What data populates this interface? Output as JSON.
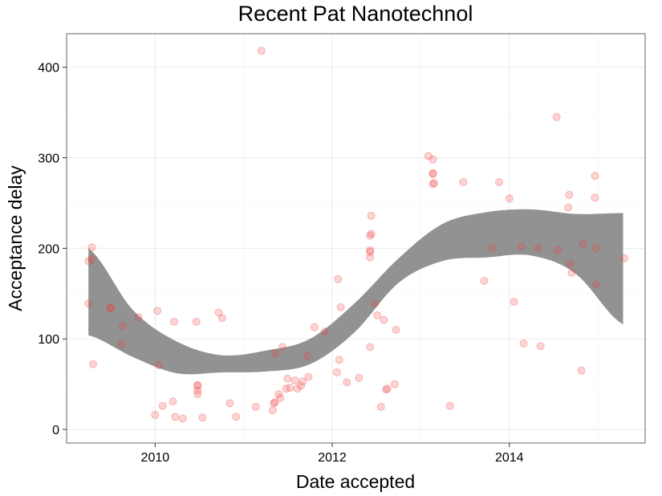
{
  "chart_data": {
    "type": "scatter",
    "title": "Recent Pat Nanotechnol",
    "xlabel": "Date accepted",
    "ylabel": "Acceptance delay",
    "x_format": "date",
    "xlim": [
      "2009-01-01",
      "2015-07-15"
    ],
    "ylim": [
      -15,
      437
    ],
    "x_ticks": [
      {
        "date": "2010-01-01",
        "label": "2010"
      },
      {
        "date": "2012-01-01",
        "label": "2012"
      },
      {
        "date": "2014-01-01",
        "label": "2014"
      }
    ],
    "y_ticks": [
      0,
      100,
      200,
      300,
      400
    ],
    "grid": true,
    "point_color": "#f03b3b",
    "ribbon_color": "#8c8c8c",
    "series": [
      {
        "values": [
          {
            "x": "2009-04-01",
            "y": 139
          },
          {
            "x": "2009-04-01",
            "y": 186
          },
          {
            "x": "2009-04-15",
            "y": 188
          },
          {
            "x": "2009-04-15",
            "y": 201
          },
          {
            "x": "2009-04-20",
            "y": 72
          },
          {
            "x": "2009-07-01",
            "y": 134
          },
          {
            "x": "2009-07-01",
            "y": 134
          },
          {
            "x": "2009-08-15",
            "y": 94
          },
          {
            "x": "2009-08-20",
            "y": 114
          },
          {
            "x": "2009-10-25",
            "y": 124
          },
          {
            "x": "2010-01-01",
            "y": 16
          },
          {
            "x": "2010-01-10",
            "y": 131
          },
          {
            "x": "2010-01-15",
            "y": 71
          },
          {
            "x": "2010-02-01",
            "y": 26
          },
          {
            "x": "2010-03-15",
            "y": 31
          },
          {
            "x": "2010-03-20",
            "y": 119
          },
          {
            "x": "2010-03-25",
            "y": 14
          },
          {
            "x": "2010-04-25",
            "y": 12
          },
          {
            "x": "2010-06-20",
            "y": 119
          },
          {
            "x": "2010-06-25",
            "y": 49
          },
          {
            "x": "2010-06-25",
            "y": 48
          },
          {
            "x": "2010-06-25",
            "y": 43
          },
          {
            "x": "2010-06-25",
            "y": 39
          },
          {
            "x": "2010-07-15",
            "y": 13
          },
          {
            "x": "2010-09-20",
            "y": 129
          },
          {
            "x": "2010-10-05",
            "y": 123
          },
          {
            "x": "2010-11-05",
            "y": 29
          },
          {
            "x": "2010-12-01",
            "y": 14
          },
          {
            "x": "2011-02-20",
            "y": 25
          },
          {
            "x": "2011-03-15",
            "y": 418
          },
          {
            "x": "2011-05-01",
            "y": 21
          },
          {
            "x": "2011-05-05",
            "y": 29
          },
          {
            "x": "2011-05-10",
            "y": 30
          },
          {
            "x": "2011-05-10",
            "y": 84
          },
          {
            "x": "2011-05-25",
            "y": 39
          },
          {
            "x": "2011-06-01",
            "y": 35
          },
          {
            "x": "2011-06-10",
            "y": 91
          },
          {
            "x": "2011-06-25",
            "y": 45
          },
          {
            "x": "2011-07-01",
            "y": 56
          },
          {
            "x": "2011-07-10",
            "y": 46
          },
          {
            "x": "2011-08-01",
            "y": 54
          },
          {
            "x": "2011-08-10",
            "y": 45
          },
          {
            "x": "2011-08-25",
            "y": 48
          },
          {
            "x": "2011-09-01",
            "y": 53
          },
          {
            "x": "2011-09-20",
            "y": 81
          },
          {
            "x": "2011-09-25",
            "y": 58
          },
          {
            "x": "2011-10-20",
            "y": 113
          },
          {
            "x": "2011-12-01",
            "y": 108
          },
          {
            "x": "2012-01-20",
            "y": 63
          },
          {
            "x": "2012-01-25",
            "y": 166
          },
          {
            "x": "2012-01-30",
            "y": 77
          },
          {
            "x": "2012-02-05",
            "y": 135
          },
          {
            "x": "2012-03-01",
            "y": 52
          },
          {
            "x": "2012-04-20",
            "y": 57
          },
          {
            "x": "2012-06-05",
            "y": 91
          },
          {
            "x": "2012-06-05",
            "y": 190
          },
          {
            "x": "2012-06-05",
            "y": 196
          },
          {
            "x": "2012-06-05",
            "y": 198
          },
          {
            "x": "2012-06-05",
            "y": 214
          },
          {
            "x": "2012-06-10",
            "y": 216
          },
          {
            "x": "2012-06-10",
            "y": 236
          },
          {
            "x": "2012-06-25",
            "y": 139
          },
          {
            "x": "2012-07-05",
            "y": 126
          },
          {
            "x": "2012-07-20",
            "y": 25
          },
          {
            "x": "2012-08-01",
            "y": 121
          },
          {
            "x": "2012-08-10",
            "y": 44
          },
          {
            "x": "2012-08-15",
            "y": 45
          },
          {
            "x": "2012-09-15",
            "y": 50
          },
          {
            "x": "2012-09-20",
            "y": 110
          },
          {
            "x": "2013-02-01",
            "y": 302
          },
          {
            "x": "2013-02-20",
            "y": 298
          },
          {
            "x": "2013-02-20",
            "y": 282
          },
          {
            "x": "2013-02-20",
            "y": 283
          },
          {
            "x": "2013-02-20",
            "y": 271
          },
          {
            "x": "2013-02-25",
            "y": 272
          },
          {
            "x": "2013-05-01",
            "y": 26
          },
          {
            "x": "2013-06-25",
            "y": 273
          },
          {
            "x": "2013-09-20",
            "y": 164
          },
          {
            "x": "2013-10-20",
            "y": 200
          },
          {
            "x": "2013-11-20",
            "y": 273
          },
          {
            "x": "2014-01-01",
            "y": 255
          },
          {
            "x": "2014-01-20",
            "y": 141
          },
          {
            "x": "2014-02-20",
            "y": 202
          },
          {
            "x": "2014-03-01",
            "y": 95
          },
          {
            "x": "2014-05-01",
            "y": 200
          },
          {
            "x": "2014-05-10",
            "y": 92
          },
          {
            "x": "2014-07-15",
            "y": 345
          },
          {
            "x": "2014-07-20",
            "y": 198
          },
          {
            "x": "2014-09-01",
            "y": 245
          },
          {
            "x": "2014-09-05",
            "y": 259
          },
          {
            "x": "2014-09-10",
            "y": 183
          },
          {
            "x": "2014-09-15",
            "y": 173
          },
          {
            "x": "2014-10-25",
            "y": 65
          },
          {
            "x": "2014-11-01",
            "y": 205
          },
          {
            "x": "2014-12-20",
            "y": 256
          },
          {
            "x": "2014-12-20",
            "y": 280
          },
          {
            "x": "2014-12-25",
            "y": 160
          },
          {
            "x": "2014-12-25",
            "y": 200
          },
          {
            "x": "2015-04-20",
            "y": 189
          }
        ]
      }
    ],
    "smooth_band": {
      "x": [
        "2009-04-01",
        "2009-10-01",
        "2010-04-01",
        "2010-10-01",
        "2011-04-01",
        "2011-10-01",
        "2012-04-01",
        "2012-10-01",
        "2013-04-01",
        "2013-10-01",
        "2014-04-01",
        "2014-10-01",
        "2015-04-15"
      ],
      "ymin": [
        104,
        80,
        62,
        63,
        64,
        72,
        107,
        162,
        186,
        190,
        192,
        172,
        116
      ],
      "ymax": [
        200,
        132,
        97,
        82,
        87,
        100,
        139,
        189,
        227,
        240,
        243,
        238,
        239
      ]
    }
  }
}
